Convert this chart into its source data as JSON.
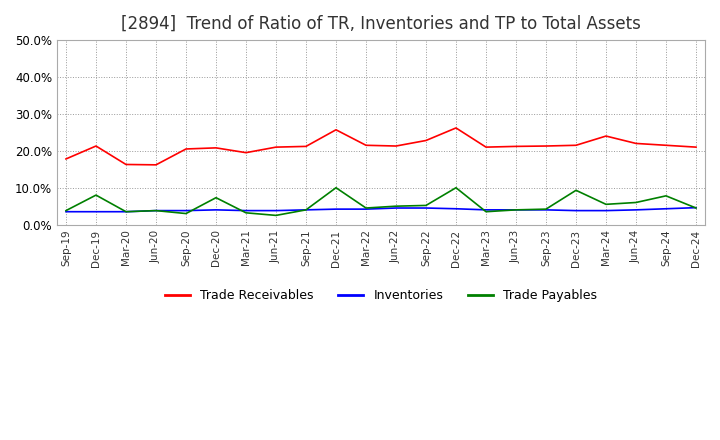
{
  "title": "[2894]  Trend of Ratio of TR, Inventories and TP to Total Assets",
  "title_fontsize": 12,
  "background_color": "#ffffff",
  "grid_color": "#999999",
  "ylim": [
    0.0,
    0.5
  ],
  "yticks": [
    0.0,
    0.1,
    0.2,
    0.3,
    0.4,
    0.5
  ],
  "x_labels": [
    "Sep-19",
    "Dec-19",
    "Mar-20",
    "Jun-20",
    "Sep-20",
    "Dec-20",
    "Mar-21",
    "Jun-21",
    "Sep-21",
    "Dec-21",
    "Mar-22",
    "Jun-22",
    "Sep-22",
    "Dec-22",
    "Mar-23",
    "Jun-23",
    "Sep-23",
    "Dec-23",
    "Mar-24",
    "Jun-24",
    "Sep-24",
    "Dec-24"
  ],
  "trade_receivables": [
    0.178,
    0.213,
    0.163,
    0.162,
    0.205,
    0.208,
    0.195,
    0.21,
    0.212,
    0.257,
    0.215,
    0.213,
    0.228,
    0.262,
    0.21,
    0.212,
    0.213,
    0.215,
    0.24,
    0.22,
    0.215,
    0.21
  ],
  "inventories": [
    0.035,
    0.035,
    0.035,
    0.038,
    0.038,
    0.04,
    0.038,
    0.038,
    0.04,
    0.042,
    0.042,
    0.045,
    0.045,
    0.043,
    0.04,
    0.04,
    0.04,
    0.038,
    0.038,
    0.04,
    0.043,
    0.046
  ],
  "trade_payables": [
    0.038,
    0.08,
    0.035,
    0.038,
    0.03,
    0.073,
    0.032,
    0.025,
    0.04,
    0.1,
    0.045,
    0.05,
    0.052,
    0.1,
    0.035,
    0.04,
    0.042,
    0.093,
    0.055,
    0.06,
    0.078,
    0.045
  ],
  "tr_color": "#ff0000",
  "inv_color": "#0000ff",
  "tp_color": "#008000",
  "legend_labels": [
    "Trade Receivables",
    "Inventories",
    "Trade Payables"
  ]
}
